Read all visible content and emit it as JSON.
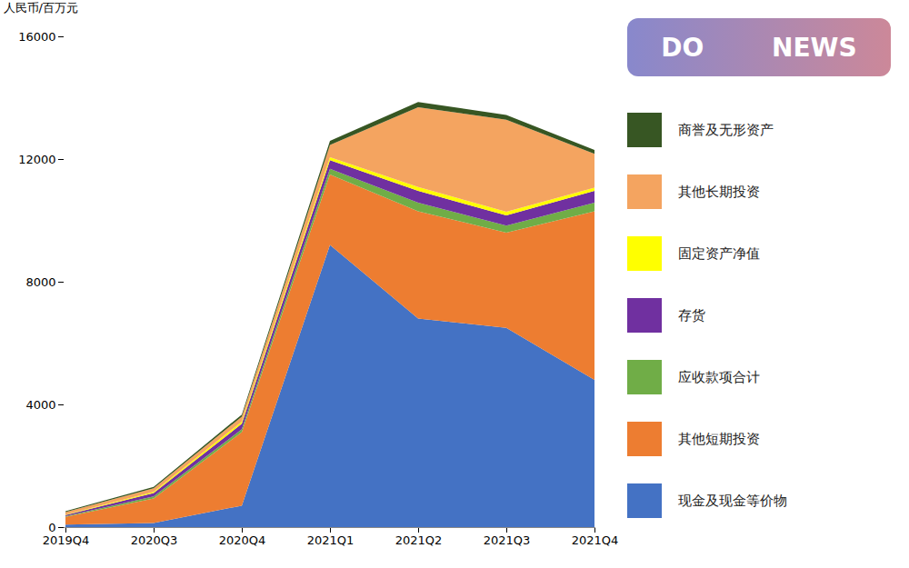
{
  "chart_data": {
    "type": "area",
    "stacked": true,
    "categories": [
      "2019Q4",
      "2020Q3",
      "2020Q4",
      "2021Q1",
      "2021Q2",
      "2021Q3",
      "2021Q4"
    ],
    "series": [
      {
        "name": "现金及现金等价物",
        "color": "#4472c4",
        "values": [
          80,
          130,
          700,
          9200,
          6800,
          6500,
          4800
        ]
      },
      {
        "name": "其他短期投资",
        "color": "#ed7d31",
        "values": [
          250,
          800,
          2400,
          2300,
          3500,
          3100,
          5500
        ]
      },
      {
        "name": "应收款项合计",
        "color": "#70ad47",
        "values": [
          25,
          70,
          90,
          180,
          280,
          230,
          280
        ]
      },
      {
        "name": "存货",
        "color": "#7030a0",
        "values": [
          40,
          110,
          180,
          280,
          380,
          330,
          380
        ]
      },
      {
        "name": "固定资产净值",
        "color": "#ffff00",
        "values": [
          15,
          40,
          70,
          100,
          130,
          120,
          110
        ]
      },
      {
        "name": "其他长期投资",
        "color": "#f4a460",
        "values": [
          80,
          120,
          160,
          400,
          2600,
          3000,
          1100
        ]
      },
      {
        "name": "商誉及无形资产",
        "color": "#375623",
        "values": [
          25,
          40,
          70,
          130,
          170,
          160,
          130
        ]
      }
    ],
    "ylabel": "人民币/百万元",
    "ylim": [
      0,
      16000
    ],
    "yticks": [
      0,
      4000,
      8000,
      12000,
      16000
    ],
    "grid": false,
    "legend": "right",
    "annotations": [
      "DO",
      "NEWS"
    ]
  }
}
